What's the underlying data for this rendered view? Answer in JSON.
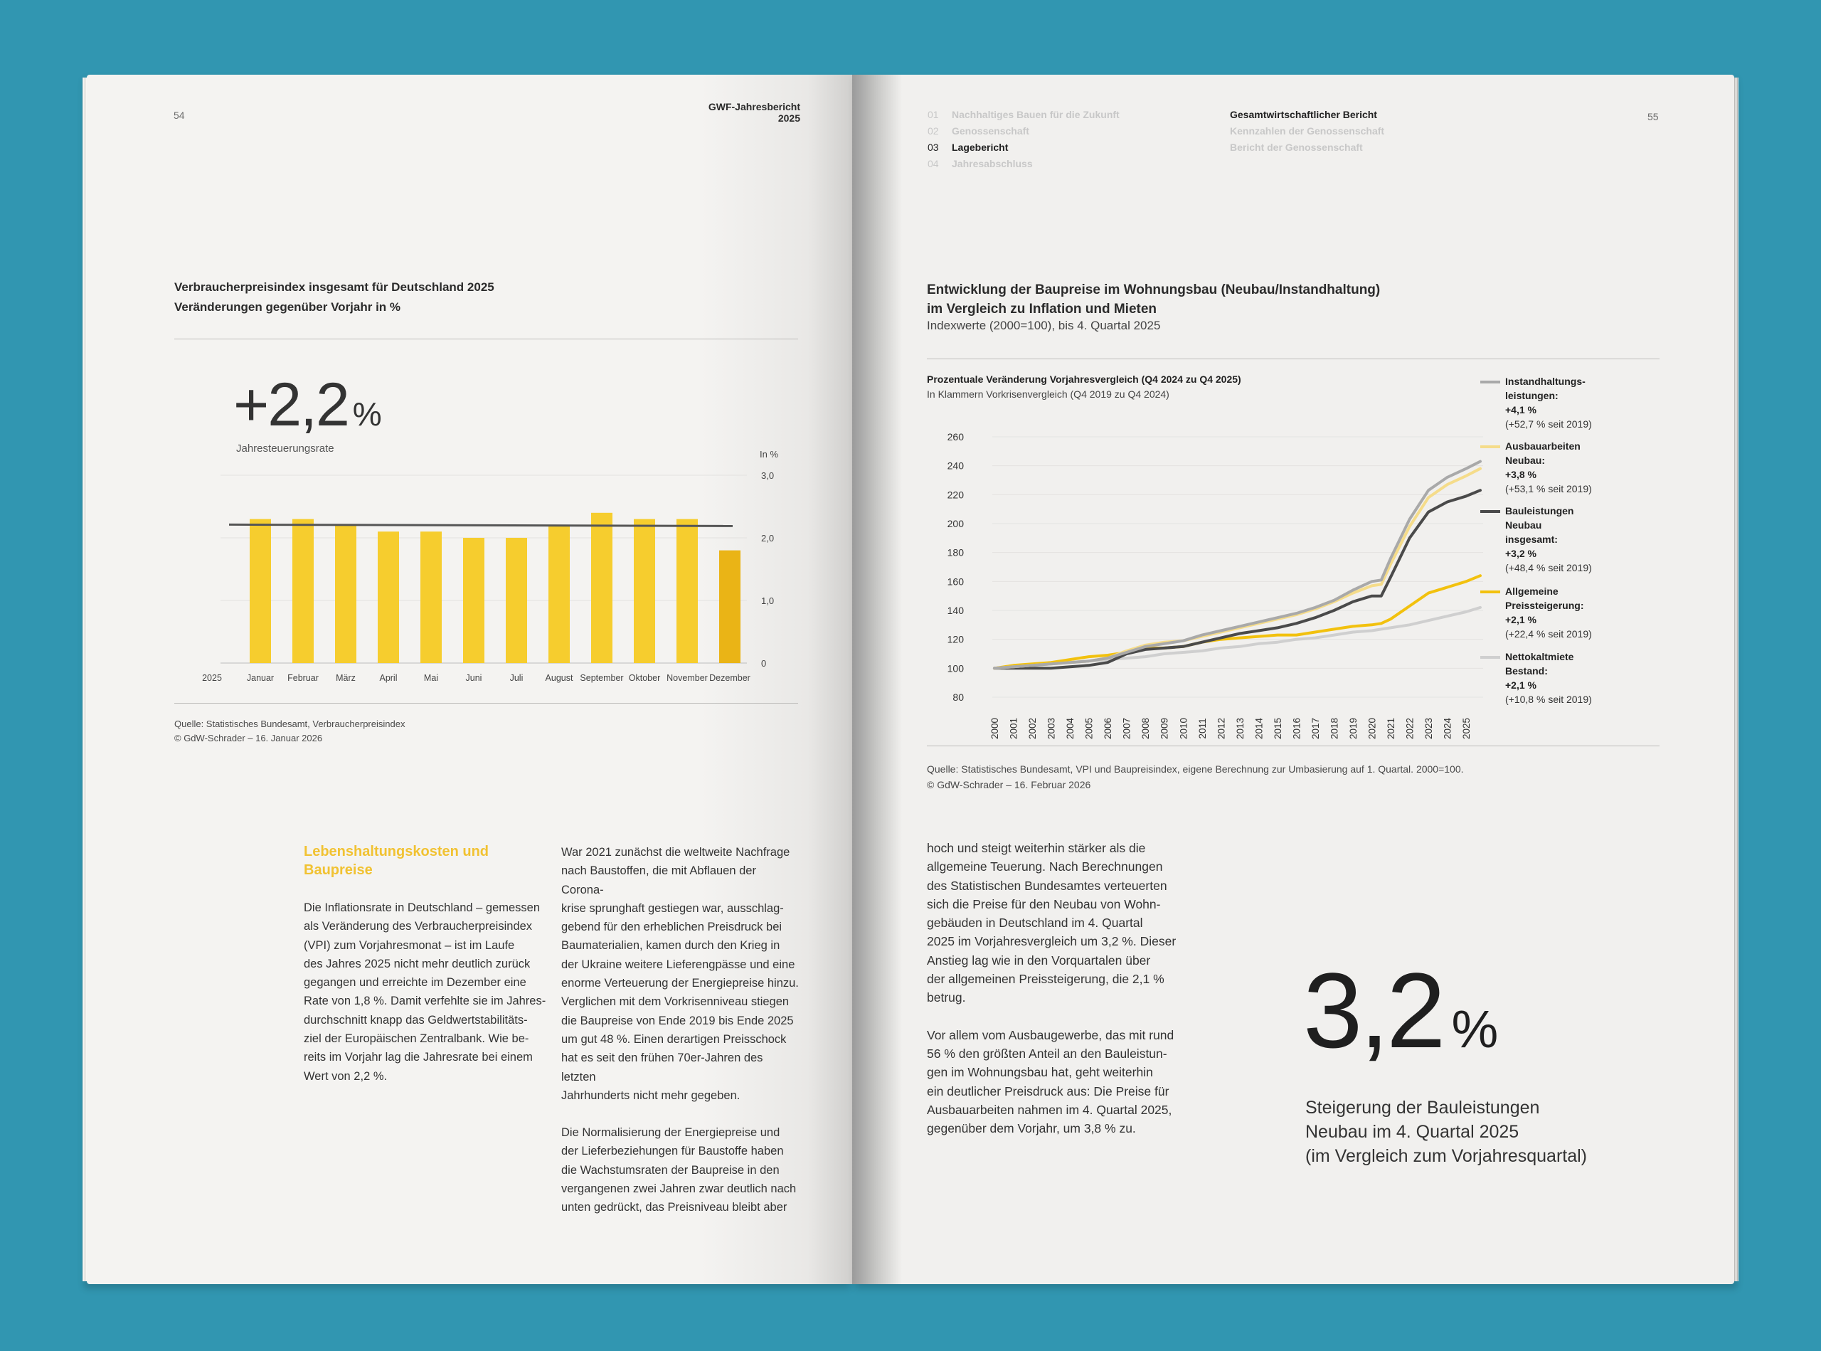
{
  "left_page": {
    "page_number": "54",
    "header": "GWF-Jahresbericht 2025",
    "chart_title_line1": "Verbraucherpreisindex insgesamt für Deutschland 2025",
    "chart_title_line2": "Veränderungen gegenüber Vorjahr in %",
    "big_value": "+2,2",
    "big_unit": "%",
    "big_caption": "Jahresteuerungsrate",
    "source_line1": "Quelle: Statistisches Bundesamt, Verbraucherpreisindex",
    "source_line2": "© GdW-Schrader – 16. Januar 2026",
    "section_heading_line1": "Lebenshaltungskosten und",
    "section_heading_line2": "Baupreise",
    "col1_lines": [
      "Die Inflationsrate in Deutschland – gemessen",
      "als Veränderung des Verbraucherpreisindex",
      "(VPI) zum Vorjahresmonat – ist im Laufe",
      "des Jahres 2025 nicht mehr deutlich zurück",
      "gegangen und erreichte im Dezember eine",
      "Rate von 1,8 %. Damit verfehlte sie im Jahres-",
      "durchschnitt knapp das Geldwertstabilitäts-",
      "ziel der Europäischen Zentralbank. Wie be-",
      "reits im Vorjahr lag die Jahresrate bei einem",
      "Wert von 2,2 %."
    ],
    "col2_para1_lines": [
      "War 2021 zunächst die weltweite Nachfrage",
      "nach Baustoffen, die mit Abflauen der Corona-",
      "krise sprunghaft gestiegen war, ausschlag-",
      "gebend für den erheblichen Preisdruck bei",
      "Baumaterialien, kamen durch den Krieg in",
      "der Ukraine weitere Lieferengpässe und eine",
      "enorme Verteuerung der Energiepreise hinzu.",
      "Verglichen mit dem Vorkrisenniveau stiegen",
      "die Baupreise von Ende 2019 bis Ende 2025",
      "um gut 48 %. Einen derartigen Preisschock",
      "hat es seit den frühen 70er-Jahren des letzten",
      "Jahrhunderts nicht mehr gegeben."
    ],
    "col2_para2_lines": [
      "Die Normalisierung der Energiepreise und",
      "der Lieferbeziehungen für Baustoffe haben",
      "die Wachstumsraten der Baupreise in den",
      "vergangenen zwei Jahren zwar deutlich nach",
      "unten gedrückt, das Preisniveau bleibt aber"
    ]
  },
  "right_page": {
    "page_number": "55",
    "nav": [
      {
        "no": "01",
        "label": "Nachhaltiges Bauen für die Zukunft",
        "active": false
      },
      {
        "no": "02",
        "label": "Genossenschaft",
        "active": false
      },
      {
        "no": "03",
        "label": "Lagebericht",
        "active": true
      },
      {
        "no": "04",
        "label": "Jahresabschluss",
        "active": false
      }
    ],
    "subnav": [
      {
        "label": "Gesamtwirtschaftlicher Bericht",
        "active": true
      },
      {
        "label": "Kennzahlen der Genossenschaft",
        "active": false
      },
      {
        "label": "Bericht der Genossenschaft",
        "active": false
      }
    ],
    "chart_title_line1": "Entwicklung der Baupreise im Wohnungsbau (Neubau/Instandhaltung)",
    "chart_title_line2": "im Vergleich zu Inflation und Mieten",
    "chart_subtitle": "Indexwerte (2000=100), bis 4. Quartal 2025",
    "inner_title": "Prozentuale Veränderung Vorjahresvergleich (Q4 2024 zu Q4 2025)",
    "inner_subtitle": "In Klammern Vorkrisenvergleich (Q4 2019 zu Q4 2024)",
    "legend": [
      {
        "name_lines": [
          "Instandhaltungs-",
          "leistungen:"
        ],
        "value": "+4,1 %",
        "since": "(+52,7 % seit 2019)",
        "color": "#a9a9a9"
      },
      {
        "name_lines": [
          "Ausbauarbeiten",
          "Neubau:"
        ],
        "value": "+3,8 %",
        "since": "(+53,1 % seit 2019)",
        "color": "#f5dc8a"
      },
      {
        "name_lines": [
          "Bauleistungen",
          "Neubau",
          "insgesamt:"
        ],
        "value": "+3,2 %",
        "since": "(+48,4 % seit 2019)",
        "color": "#4a4a4a"
      },
      {
        "name_lines": [
          "Allgemeine",
          "Preissteigerung:"
        ],
        "value": "+2,1 %",
        "since": "(+22,4 % seit 2019)",
        "color": "#f2c10e"
      },
      {
        "name_lines": [
          "Nettokaltmiete",
          "Bestand:"
        ],
        "value": "+2,1 %",
        "since": "(+10,8 % seit 2019)",
        "color": "#cfcfcf"
      }
    ],
    "source_line1": "Quelle: Statistisches Bundesamt, VPI und Baupreisindex, eigene Berechnung zur Umbasierung auf 1. Quartal. 2000=100.",
    "source_line2": "© GdW-Schrader – 16. Februar 2026",
    "para1_lines": [
      "hoch und steigt weiterhin stärker als die",
      "allgemeine Teuerung. Nach Berechnungen",
      "des Statistischen Bundesamtes verteuerten",
      "sich die Preise für den Neubau von Wohn-",
      "gebäuden in Deutschland im 4. Quartal",
      "2025 im Vorjahresvergleich um 3,2 %. Dieser",
      "Anstieg lag wie in den Vorquartalen über",
      "der allgemeinen Preissteigerung, die 2,1 %",
      "betrug."
    ],
    "para2_lines": [
      "Vor allem vom Ausbaugewerbe, das mit rund",
      "56 % den größten Anteil an den Bauleistun-",
      "gen im Wohnungsbau hat, geht weiterhin",
      "ein deutlicher Preisdruck aus: Die Preise für",
      "Ausbauarbeiten nahmen im 4. Quartal 2025,",
      "gegenüber dem Vorjahr, um 3,8 % zu."
    ],
    "big_value": "3,2",
    "big_unit": "%",
    "big_caption_lines": [
      "Steigerung der Bauleistungen",
      "Neubau im 4. Quartal 2025",
      "(im Vergleich zum Vorjahresquartal)"
    ]
  },
  "chart_data": [
    {
      "type": "bar",
      "title": "Verbraucherpreisindex insgesamt für Deutschland 2025",
      "subtitle": "Veränderungen gegenüber Vorjahr in %",
      "year_label": "2025",
      "categories": [
        "Januar",
        "Februar",
        "März",
        "April",
        "Mai",
        "Juni",
        "Juli",
        "August",
        "September",
        "Oktober",
        "November",
        "Dezember"
      ],
      "values": [
        2.3,
        2.3,
        2.2,
        2.1,
        2.1,
        2.0,
        2.0,
        2.2,
        2.4,
        2.3,
        2.3,
        1.8
      ],
      "reference_line": 2.2,
      "ylabel": "In %",
      "ylim": [
        0,
        3.0
      ],
      "yticks": [
        "0",
        "1,0",
        "2,0",
        "3,0"
      ],
      "bar_color": "#f6cd2e",
      "last_bar_color": "#eab416",
      "line_color": "#555555",
      "grid": true
    },
    {
      "type": "line",
      "title": "Prozentuale Veränderung Vorjahresvergleich (Q4 2024 zu Q4 2025)",
      "x": [
        2000,
        2001,
        2002,
        2003,
        2004,
        2005,
        2006,
        2007,
        2008,
        2009,
        2010,
        2011,
        2012,
        2013,
        2014,
        2015,
        2016,
        2017,
        2018,
        2019,
        2020,
        2020.5,
        2021,
        2022,
        2023,
        2024,
        2025,
        2025.75
      ],
      "ylim": [
        80,
        260
      ],
      "yticks": [
        80,
        100,
        120,
        140,
        160,
        180,
        200,
        220,
        240,
        260
      ],
      "series": [
        {
          "name": "Nettokaltmiete Bestand",
          "color": "#cfcfcf",
          "values": [
            100,
            101,
            102,
            103,
            104,
            105,
            106,
            107,
            108,
            110,
            111,
            112,
            114,
            115,
            117,
            118,
            120,
            121,
            123,
            125,
            126,
            127,
            128,
            130,
            133,
            136,
            139,
            142
          ]
        },
        {
          "name": "Allgemeine Preissteigerung",
          "color": "#f2c10e",
          "values": [
            100,
            102,
            103,
            104,
            106,
            108,
            109,
            111,
            114,
            114,
            115,
            118,
            120,
            121,
            122,
            123,
            123,
            125,
            127,
            129,
            130,
            131,
            134,
            143,
            152,
            156,
            160,
            164
          ]
        },
        {
          "name": "Bauleistungen Neubau insgesamt",
          "color": "#4a4a4a",
          "values": [
            100,
            100,
            100,
            100,
            101,
            102,
            104,
            110,
            113,
            114,
            115,
            118,
            121,
            124,
            126,
            128,
            131,
            135,
            140,
            146,
            150,
            150,
            163,
            190,
            208,
            215,
            219,
            223
          ]
        },
        {
          "name": "Ausbauarbeiten Neubau",
          "color": "#f5dc8a",
          "values": [
            100,
            101,
            102,
            103,
            104,
            105,
            107,
            112,
            116,
            118,
            119,
            122,
            125,
            128,
            131,
            134,
            137,
            141,
            146,
            152,
            157,
            158,
            172,
            198,
            218,
            227,
            233,
            238
          ]
        },
        {
          "name": "Instandhaltungsleistungen",
          "color": "#a9a9a9",
          "values": [
            100,
            101,
            102,
            103,
            104,
            105,
            107,
            111,
            115,
            117,
            119,
            123,
            126,
            129,
            132,
            135,
            138,
            142,
            147,
            154,
            160,
            161,
            176,
            203,
            223,
            232,
            238,
            243
          ]
        }
      ],
      "xticks": [
        "2000",
        "2001",
        "2002",
        "2003",
        "2004",
        "2005",
        "2006",
        "2007",
        "2008",
        "2009",
        "2010",
        "2011",
        "2012",
        "2013",
        "2014",
        "2015",
        "2016",
        "2017",
        "2018",
        "2019",
        "2020",
        "2021",
        "2022",
        "2023",
        "2024",
        "2025"
      ],
      "grid": true
    }
  ]
}
